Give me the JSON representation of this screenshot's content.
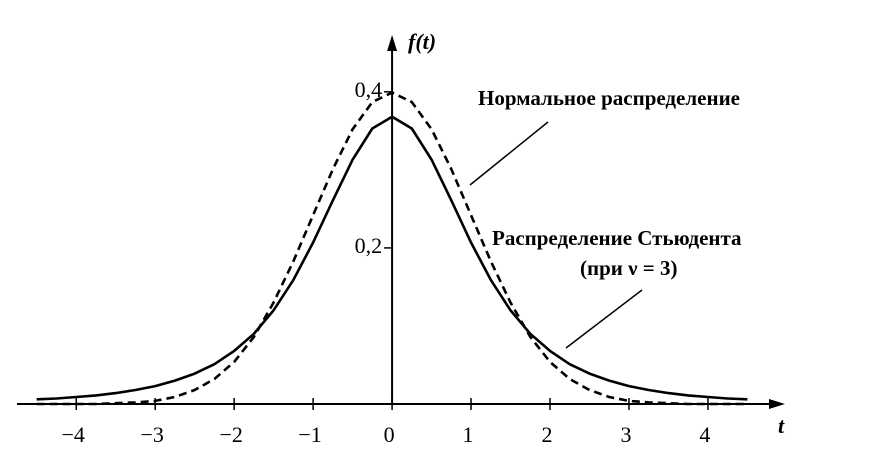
{
  "chart_data": {
    "type": "line",
    "ylabel": "f(t)",
    "xlabel": "t",
    "annotation": "(при ν = 3)",
    "xlim": [
      -4.75,
      4.9
    ],
    "ylim": [
      0,
      0.46
    ],
    "xticks": [
      {
        "value": -4,
        "label": "−4"
      },
      {
        "value": -3,
        "label": "−3"
      },
      {
        "value": -2,
        "label": "−2"
      },
      {
        "value": -1,
        "label": "−1"
      },
      0,
      1,
      2,
      3,
      4
    ],
    "yticks": [
      {
        "value": 0.2,
        "label": "0,2"
      },
      {
        "value": 0.4,
        "label": "0,4"
      }
    ],
    "x": [
      -4.5,
      -4.25,
      -4,
      -3.75,
      -3.5,
      -3.25,
      -3,
      -2.75,
      -2.5,
      -2.25,
      -2,
      -1.75,
      -1.5,
      -1.25,
      -1,
      -0.75,
      -0.5,
      -0.25,
      0,
      0.25,
      0.5,
      0.75,
      1,
      1.25,
      1.5,
      1.75,
      2,
      2.25,
      2.5,
      2.75,
      3,
      3.25,
      3.5,
      3.75,
      4,
      4.25,
      4.5
    ],
    "series": [
      {
        "name": "Нормальное распределение",
        "color": "#000000",
        "style": "dashed",
        "values": [
          0,
          0,
          0,
          0,
          0.001,
          0.002,
          0.004,
          0.009,
          0.018,
          0.032,
          0.054,
          0.086,
          0.13,
          0.183,
          0.242,
          0.301,
          0.352,
          0.387,
          0.399,
          0.387,
          0.352,
          0.301,
          0.242,
          0.183,
          0.13,
          0.086,
          0.054,
          0.032,
          0.018,
          0.009,
          0.004,
          0.002,
          0.001,
          0,
          0,
          0,
          0
        ]
      },
      {
        "name": "Распределение Стьюдента",
        "color": "#000000",
        "style": "solid",
        "values": [
          0.006,
          0.007,
          0.009,
          0.011,
          0.014,
          0.018,
          0.023,
          0.03,
          0.039,
          0.051,
          0.068,
          0.09,
          0.12,
          0.159,
          0.207,
          0.261,
          0.313,
          0.353,
          0.368,
          0.353,
          0.313,
          0.261,
          0.207,
          0.159,
          0.12,
          0.09,
          0.068,
          0.051,
          0.039,
          0.03,
          0.023,
          0.018,
          0.014,
          0.011,
          0.009,
          0.007,
          0.006
        ]
      }
    ]
  }
}
